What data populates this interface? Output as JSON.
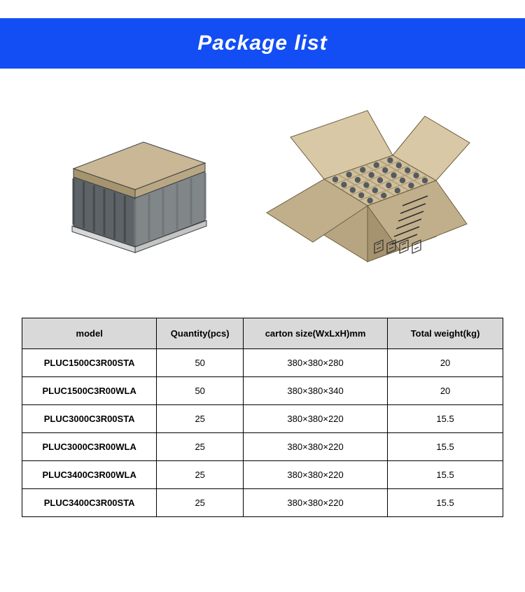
{
  "banner": {
    "title": "Package list",
    "background_color": "#134ef4",
    "text_color": "#ffffff",
    "title_fontsize": 30
  },
  "images": {
    "closed_box": {
      "lid_top": "#c9b795",
      "lid_front": "#a6946f",
      "lid_side": "#b9a784",
      "body_front": "#5e6367",
      "body_side": "#818689",
      "rib": "#464b4e",
      "outline": "#3d4144"
    },
    "open_box": {
      "flap_outer": "#c1af8c",
      "flap_inner": "#d8c8a6",
      "wall_front": "#a5936f",
      "wall_side": "#b7a582",
      "interior": "#cfbf9c",
      "divider": "#b09d78",
      "item": "#555a5e",
      "print": "#2d2d2d",
      "outline": "#6d5e3e"
    }
  },
  "table": {
    "header_bg": "#d9d9d9",
    "border_color": "#000000",
    "columns": [
      "model",
      "Quantity(pcs)",
      "carton size(WxLxH)mm",
      "Total weight(kg)"
    ],
    "rows": [
      [
        "PLUC1500C3R00STA",
        "50",
        "380×380×280",
        "20"
      ],
      [
        "PLUC1500C3R00WLA",
        "50",
        "380×380×340",
        "20"
      ],
      [
        "PLUC3000C3R00STA",
        "25",
        "380×380×220",
        "15.5"
      ],
      [
        "PLUC3000C3R00WLA",
        "25",
        "380×380×220",
        "15.5"
      ],
      [
        "PLUC3400C3R00WLA",
        "25",
        "380×380×220",
        "15.5"
      ],
      [
        "PLUC3400C3R00STA",
        "25",
        "380×380×220",
        "15.5"
      ]
    ]
  }
}
